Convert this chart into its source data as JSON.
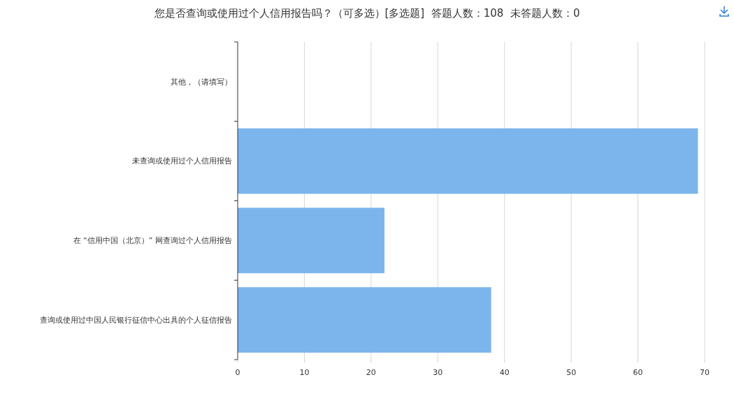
{
  "chart_data": {
    "type": "bar",
    "orientation": "horizontal",
    "title": "您是否查询或使用过个人信用报告吗？（可多选）[多选题]  答题人数：108  未答题人数：0",
    "categories": [
      "其他，（请填写）",
      "未查询或使用过个人信用报告",
      "在 “信用中国（北京）” 网查询过个人信用报告",
      "查询或使用过中国人民银行征信中心出具的个人征信报告"
    ],
    "values": [
      0,
      69,
      22,
      38
    ],
    "color": "#7cb5ec",
    "xlim": [
      0,
      70
    ],
    "xticks": [
      0,
      10,
      20,
      30,
      40,
      50,
      60,
      70
    ],
    "grid": "x"
  }
}
